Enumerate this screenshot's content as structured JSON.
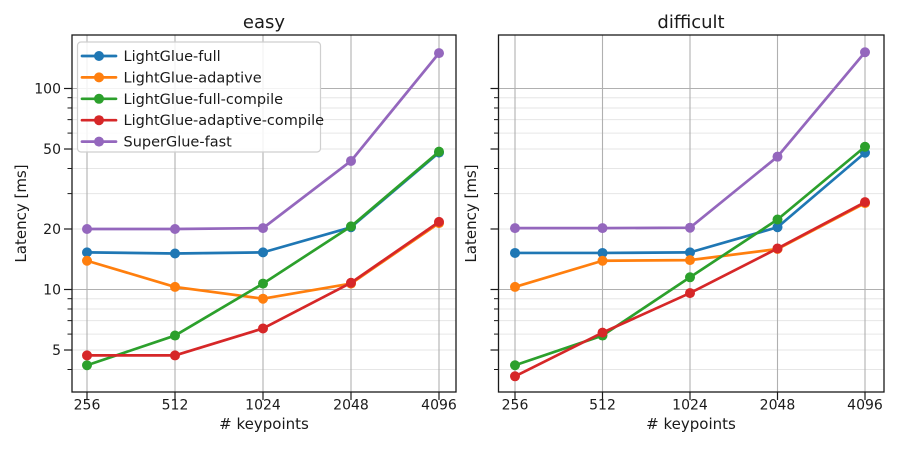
{
  "figure": {
    "background": "#ffffff",
    "grid_major_color": "#b0b0b0",
    "grid_minor_color": "#e6e6e6",
    "spine_color": "#1a1a1a",
    "text_color": "#1a1a1a"
  },
  "chart_data": [
    {
      "type": "line",
      "title": "easy",
      "xlabel": "# keypoints",
      "ylabel": "Latency [ms]",
      "xscale": "log2",
      "yscale": "log10",
      "x": [
        256,
        512,
        1024,
        2048,
        4096
      ],
      "x_tick_labels": [
        "256",
        "512",
        "1024",
        "2048",
        "4096"
      ],
      "yticks": [
        5,
        10,
        20,
        50,
        100
      ],
      "ytick_labels": [
        "5",
        "10",
        "20",
        "50",
        "100"
      ],
      "show_ytick_labels": true,
      "ylim": [
        3.1,
        184
      ],
      "grid": "both",
      "legend": {
        "visible": true,
        "location": "upper left"
      },
      "series": [
        {
          "name": "LightGlue-full",
          "color": "#1f77b4",
          "values": [
            15.3,
            15.1,
            15.3,
            20.4,
            48.0
          ]
        },
        {
          "name": "LightGlue-adaptive",
          "color": "#ff7f0e",
          "values": [
            13.9,
            10.3,
            9.0,
            10.7,
            21.4
          ]
        },
        {
          "name": "LightGlue-full-compile",
          "color": "#2ca02c",
          "values": [
            4.2,
            5.9,
            10.7,
            20.6,
            48.5
          ]
        },
        {
          "name": "LightGlue-adaptive-compile",
          "color": "#d62728",
          "values": [
            4.7,
            4.7,
            6.4,
            10.8,
            21.7
          ]
        },
        {
          "name": "SuperGlue-fast",
          "color": "#9467bd",
          "values": [
            20.0,
            20.0,
            20.2,
            43.6,
            150.0
          ]
        }
      ]
    },
    {
      "type": "line",
      "title": "difficult",
      "xlabel": "# keypoints",
      "ylabel": "Latency [ms]",
      "xscale": "log2",
      "yscale": "log10",
      "x": [
        256,
        512,
        1024,
        2048,
        4096
      ],
      "x_tick_labels": [
        "256",
        "512",
        "1024",
        "2048",
        "4096"
      ],
      "yticks": [
        5,
        10,
        20,
        50,
        100
      ],
      "ytick_labels": [
        "5",
        "10",
        "20",
        "50",
        "100"
      ],
      "show_ytick_labels": false,
      "ylim": [
        3.1,
        184
      ],
      "grid": "both",
      "legend": {
        "visible": false
      },
      "series": [
        {
          "name": "LightGlue-full",
          "color": "#1f77b4",
          "values": [
            15.2,
            15.2,
            15.3,
            20.4,
            47.9
          ]
        },
        {
          "name": "LightGlue-adaptive",
          "color": "#ff7f0e",
          "values": [
            10.3,
            13.9,
            14.0,
            15.9,
            26.9
          ]
        },
        {
          "name": "LightGlue-full-compile",
          "color": "#2ca02c",
          "values": [
            4.2,
            5.9,
            11.5,
            22.3,
            51.3
          ]
        },
        {
          "name": "LightGlue-adaptive-compile",
          "color": "#d62728",
          "values": [
            3.7,
            6.1,
            9.6,
            16.0,
            27.2
          ]
        },
        {
          "name": "SuperGlue-fast",
          "color": "#9467bd",
          "values": [
            20.2,
            20.2,
            20.3,
            45.8,
            151.5
          ]
        }
      ]
    }
  ]
}
